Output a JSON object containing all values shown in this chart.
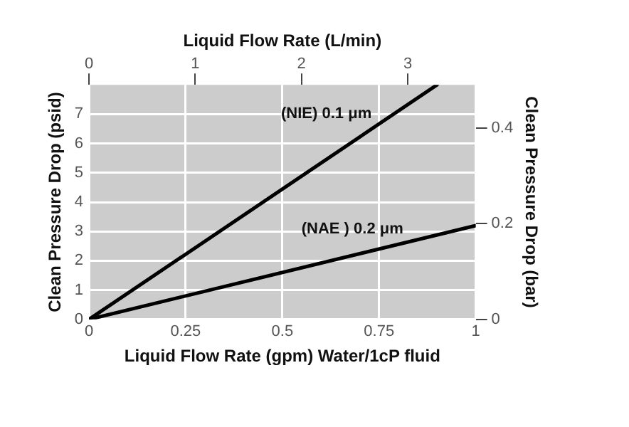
{
  "chart_data": {
    "type": "line",
    "xlabel": "Liquid Flow Rate (gpm) Water/1cP fluid",
    "x2label": "Liquid Flow Rate (L/min)",
    "ylabel": "Clean Pressure Drop (psid)",
    "y2label": "Clean Pressure Drop (bar)",
    "xlim": [
      0,
      1
    ],
    "xticks": [
      0,
      0.25,
      0.5,
      0.75,
      1
    ],
    "x2lim": [
      0,
      3.64
    ],
    "x2ticks": [
      0,
      1,
      2,
      3
    ],
    "ylim": [
      0,
      8
    ],
    "yticks": [
      0,
      1,
      2,
      3,
      4,
      5,
      6,
      7
    ],
    "y2lim": [
      0,
      0.49
    ],
    "y2ticks": [
      0,
      0.2,
      0.4
    ],
    "grid": true,
    "legend": false,
    "marker": "none",
    "line_style": "solid",
    "series": [
      {
        "name": "(NIE) 0.1 μm",
        "color": "#000000",
        "x": [
          0,
          0.9
        ],
        "values": [
          0,
          8
        ]
      },
      {
        "name": "(NAE ) 0.2 μm",
        "color": "#000000",
        "x": [
          0,
          1
        ],
        "values": [
          0,
          3.2
        ]
      }
    ]
  }
}
